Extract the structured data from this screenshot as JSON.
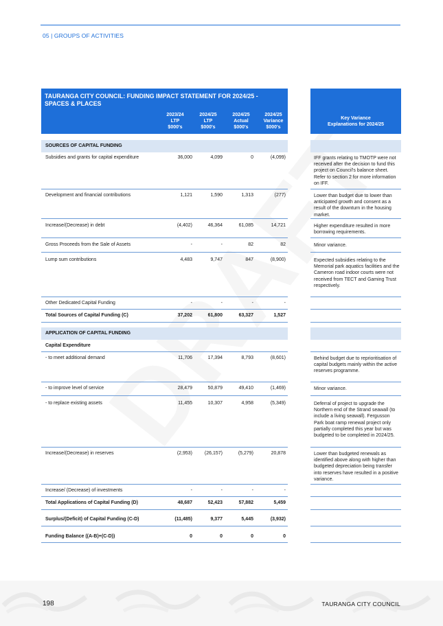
{
  "section_label": "05 | GROUPS OF ACTIVITIES",
  "watermark": "DRAFT",
  "table": {
    "title": "TAURANGA CITY COUNCIL: FUNDING IMPACT STATEMENT FOR 2024/25 - SPACES & PLACES",
    "columns": [
      {
        "l1": "2023/24",
        "l2": "LTP",
        "l3": "$000's"
      },
      {
        "l1": "2024/25",
        "l2": "LTP",
        "l3": "$000's"
      },
      {
        "l1": "2024/25",
        "l2": "Actual",
        "l3": "$000's"
      },
      {
        "l1": "2024/25",
        "l2": "Variance",
        "l3": "$000's"
      }
    ],
    "sources_heading": "SOURCES OF CAPITAL FUNDING",
    "application_heading": "APPLICATION OF CAPITAL FUNDING",
    "capex_heading": "Capital Expenditure",
    "rows": [
      {
        "label": "Subsidies and grants for capital expenditure",
        "v": [
          "36,000",
          "4,099",
          "0",
          "(4,099)"
        ]
      },
      {
        "label": "Development and financial contributions",
        "v": [
          "1,121",
          "1,590",
          "1,313",
          "(277)"
        ]
      },
      {
        "label": "Increase/(Decrease) in debt",
        "v": [
          "(4,402)",
          "46,364",
          "61,085",
          "14,721"
        ]
      },
      {
        "label": "Gross Proceeds from the Sale of Assets",
        "v": [
          "-",
          "-",
          "82",
          "82"
        ]
      },
      {
        "label": "Lump sum contributions",
        "v": [
          "4,483",
          "9,747",
          "847",
          "(8,900)"
        ]
      },
      {
        "label": "Other Dedicated Capital Funding",
        "v": [
          "-",
          "-",
          "-",
          "-"
        ]
      },
      {
        "label": "Total Sources of Capital Funding (C)",
        "v": [
          "37,202",
          "61,800",
          "63,327",
          "1,527"
        ]
      },
      {
        "label": "- to meet additional demand",
        "v": [
          "11,706",
          "17,394",
          "8,793",
          "(8,601)"
        ]
      },
      {
        "label": "- to improve level of service",
        "v": [
          "28,479",
          "50,879",
          "49,410",
          "(1,469)"
        ]
      },
      {
        "label": "- to replace existing assets",
        "v": [
          "11,455",
          "10,307",
          "4,958",
          "(5,349)"
        ]
      },
      {
        "label": "Increase/(Decrease) in reserves",
        "v": [
          "(2,953)",
          "(26,157)",
          "(5,279)",
          "20,878"
        ]
      },
      {
        "label": "Increase/ (Decrease) of investments",
        "v": [
          "-",
          "-",
          "-",
          "-"
        ]
      },
      {
        "label": "Total Applications of Capital Funding (D)",
        "v": [
          "48,687",
          "52,423",
          "57,882",
          "5,459"
        ]
      },
      {
        "label": "Surplus/(Deficit) of Capital Funding (C-D)",
        "v": [
          "(11,485)",
          "9,377",
          "5,445",
          "(3,932)"
        ]
      },
      {
        "label": "Funding Balance ((A-B)+(C-D))",
        "v": [
          "0",
          "0",
          "0",
          "0"
        ]
      }
    ]
  },
  "key_variance": {
    "title_l1": "Key Variance",
    "title_l2": "Explanations for 2024/25",
    "notes": [
      "IFF grants relating to TMOTP were not received after the decision to fund this project on Council's balance sheet. Refer to section 2 for more information on IFF.",
      "Lower than budget due to lower than anticipated growth and consent as a result of the downturn in the housing market.",
      "Higher expenditure resulted in more borrowing requirements.",
      "Minor variance.",
      "Expected subsidies relating to the Memorial park aquatics facilities and the Cameron road indoor courts were not received from TECT and Gaming Trust respectively.",
      "Behind budget due to reprioritisation of capital budgets mainly within the active reserves programme.",
      "Minor variance.",
      "Deferral of project to upgrade the Northern end of the Strand seawall (to include a living seawall). Fergusson Park boat ramp renewal project only partially completed this year but was budgeted to be completed in 2024/25.",
      "Lower than budgeted renewals as identified above along with higher than budgeted depreciation being transfer into reserves have resulted in a positive variance."
    ]
  },
  "footer": {
    "page_number": "198",
    "organisation": "TAURANGA CITY COUNCIL"
  }
}
